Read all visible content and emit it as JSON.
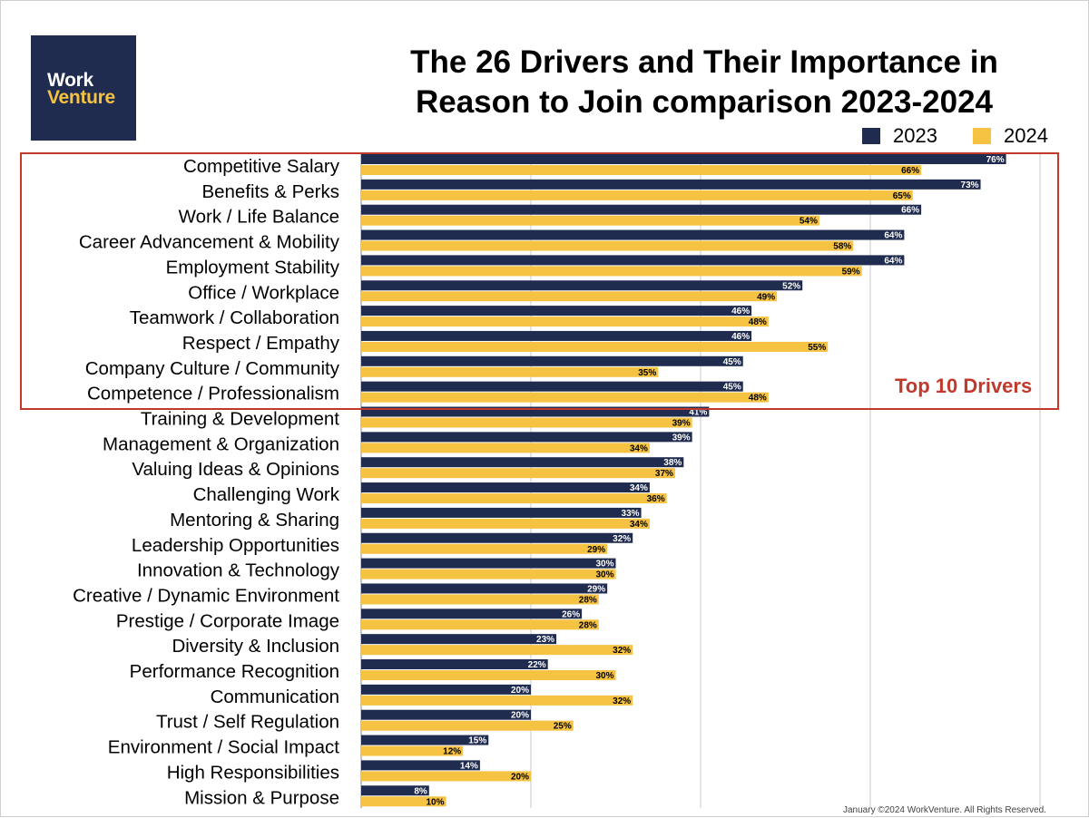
{
  "logo": {
    "line1": "Work",
    "line2": "Venture"
  },
  "footer": "January ©2024 WorkVenture. All Rights Reserved.",
  "highlight_label": "Top 10 Drivers",
  "colors": {
    "2023": "#1f2b4f",
    "2024": "#f5c242",
    "highlight": "#c0392b"
  },
  "chart_data": {
    "type": "bar",
    "orientation": "horizontal",
    "title": "The 26 Drivers and Their Importance in Reason to Join comparison 2023-2024",
    "title_lines": [
      "The 26 Drivers and Their Importance in",
      "Reason to Join comparison 2023-2024"
    ],
    "categories": [
      "Competitive Salary",
      "Benefits & Perks",
      "Work / Life Balance",
      "Career Advancement & Mobility",
      "Employment Stability",
      "Office / Workplace",
      "Teamwork / Collaboration",
      "Respect / Empathy",
      "Company Culture / Community",
      "Competence / Professionalism",
      "Training & Development",
      "Management & Organization",
      "Valuing Ideas & Opinions",
      "Challenging Work",
      "Mentoring & Sharing",
      "Leadership Opportunities",
      "Innovation & Technology",
      "Creative / Dynamic Environment",
      "Prestige / Corporate Image",
      "Diversity & Inclusion",
      "Performance Recognition",
      "Communication",
      "Trust / Self Regulation",
      "Environment / Social Impact",
      "High Responsibilities",
      "Mission & Purpose"
    ],
    "series": [
      {
        "name": "2023",
        "color": "#1f2b4f",
        "values": [
          76,
          73,
          66,
          64,
          64,
          52,
          46,
          46,
          45,
          45,
          41,
          39,
          38,
          34,
          33,
          32,
          30,
          29,
          26,
          23,
          22,
          20,
          20,
          15,
          14,
          8
        ]
      },
      {
        "name": "2024",
        "color": "#f5c242",
        "values": [
          66,
          65,
          54,
          58,
          59,
          49,
          48,
          55,
          35,
          48,
          39,
          34,
          37,
          36,
          34,
          29,
          30,
          28,
          28,
          32,
          30,
          32,
          25,
          12,
          20,
          10
        ]
      }
    ],
    "value_suffix": "%",
    "xlim": [
      0,
      80
    ],
    "grid": true,
    "legend": "top-right"
  }
}
